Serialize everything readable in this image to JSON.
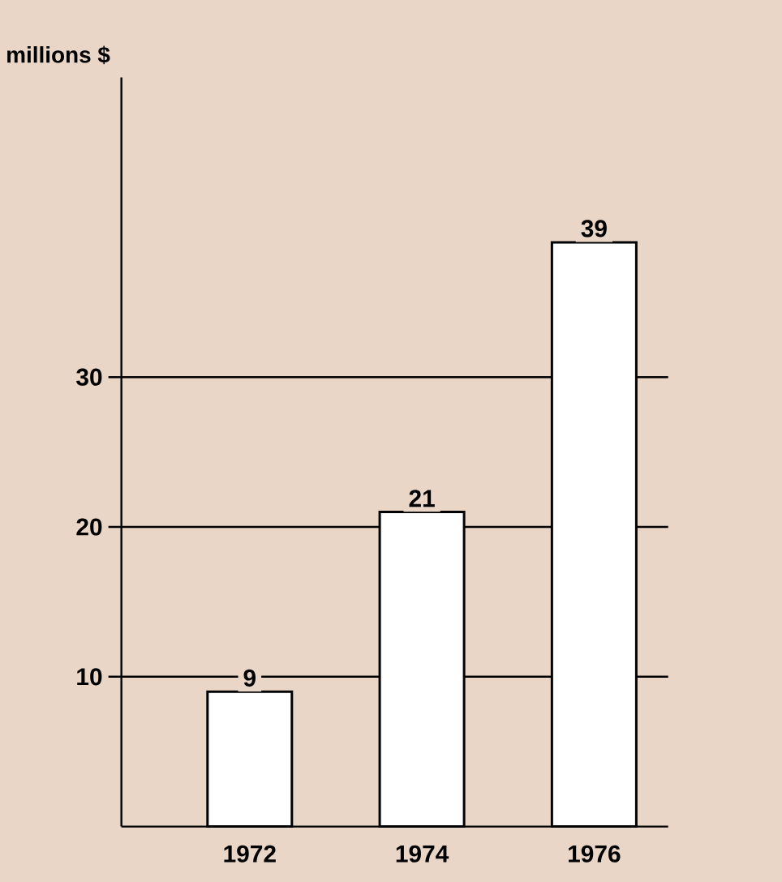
{
  "chart_data": {
    "type": "bar",
    "ylabel": "millions $",
    "categories": [
      "1972",
      "1974",
      "1976"
    ],
    "values": [
      9,
      21,
      39
    ],
    "color": "#ffffff",
    "ylim": [
      0,
      50
    ],
    "yticks": [
      10,
      20,
      30
    ],
    "grid": "y",
    "data_labels": true
  }
}
